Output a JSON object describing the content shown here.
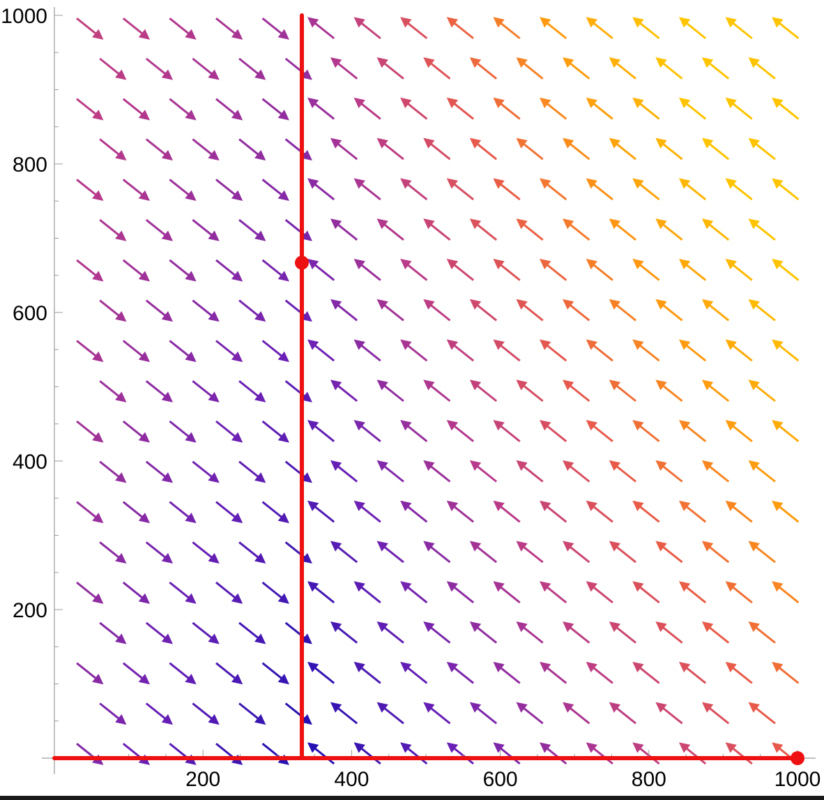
{
  "chart_data": {
    "type": "vector-field",
    "title": "",
    "xlabel": "",
    "ylabel": "",
    "xlim": [
      0,
      1000
    ],
    "ylim": [
      0,
      1000
    ],
    "x_ticks": [
      200,
      400,
      600,
      800,
      1000
    ],
    "y_ticks": [
      200,
      400,
      600,
      800,
      1000
    ],
    "x_tick_labels": [
      "200",
      "400",
      "600",
      "800",
      "1000"
    ],
    "y_tick_labels": [
      "200",
      "400",
      "600",
      "800",
      "1000"
    ],
    "grid": false,
    "vector_field": {
      "x_start": 47,
      "x_step": 62.5,
      "x_count": 17,
      "y_start": 6,
      "y_step": 54.25,
      "y_count": 19,
      "row_offset": 31,
      "direction_left_of_nullcline": [
        1,
        -0.8
      ],
      "direction_right_of_nullcline": [
        -1,
        0.8
      ],
      "colormap": [
        "#1b0fb0",
        "#6a20b5",
        "#b83a8a",
        "#e85a4a",
        "#ff9a10",
        "#ffc400"
      ]
    },
    "nullclines": [
      {
        "name": "",
        "color": "#ee1111",
        "points": [
          [
            333,
            0
          ],
          [
            333,
            1000
          ]
        ]
      },
      {
        "name": "",
        "color": "#ee1111",
        "points": [
          [
            0,
            0
          ],
          [
            1000,
            0
          ]
        ]
      }
    ],
    "equilibria": [
      {
        "x": 333,
        "y": 667,
        "color": "#ee1111"
      },
      {
        "x": 1000,
        "y": 0,
        "color": "#ee1111"
      }
    ]
  }
}
